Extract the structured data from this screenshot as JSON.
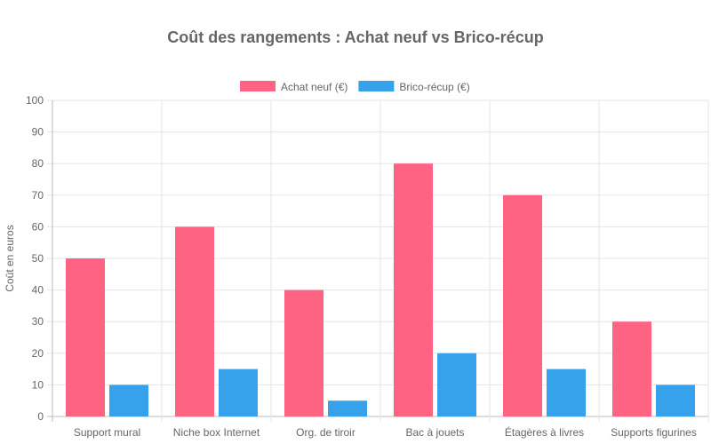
{
  "chart_data": {
    "type": "bar",
    "title": "Coût des rangements : Achat neuf vs Brico-récup",
    "xlabel": "",
    "ylabel": "Coût en euros",
    "ylim": [
      0,
      100
    ],
    "yticks": [
      0,
      10,
      20,
      30,
      40,
      50,
      60,
      70,
      80,
      90,
      100
    ],
    "grid": true,
    "legend_position": "top",
    "categories": [
      "Support mural",
      "Niche box Internet",
      "Org. de tiroir",
      "Bac à jouets",
      "Étagères à livres",
      "Supports figurines"
    ],
    "series": [
      {
        "name": "Achat neuf (€)",
        "color": "#ff6384",
        "values": [
          50,
          60,
          40,
          80,
          70,
          30
        ]
      },
      {
        "name": "Brico-récup (€)",
        "color": "#36a2eb",
        "values": [
          10,
          15,
          5,
          20,
          15,
          10
        ]
      }
    ]
  }
}
